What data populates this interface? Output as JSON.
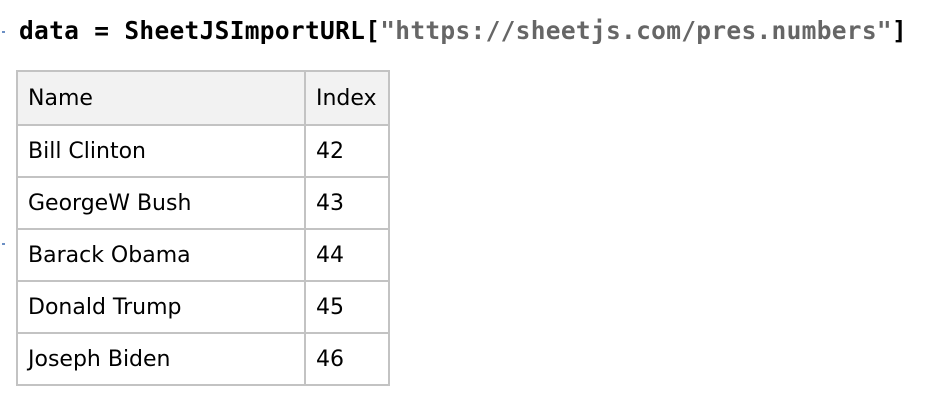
{
  "input": {
    "variable": "data",
    "operator": " = ",
    "function": "SheetJSImportURL",
    "open_bracket": "[",
    "argument": "\"https://sheetjs.com/pres.numbers\"",
    "close_bracket": "]"
  },
  "table": {
    "headers": [
      "Name",
      "Index"
    ],
    "rows": [
      [
        "Bill Clinton",
        "42"
      ],
      [
        "GeorgeW Bush",
        "43"
      ],
      [
        "Barack Obama",
        "44"
      ],
      [
        "Donald Trump",
        "45"
      ],
      [
        "Joseph Biden",
        "46"
      ]
    ]
  },
  "colors": {
    "header_bg": "#f2f2f2",
    "grid": "#c3c3c3",
    "string_literal": "#666666",
    "cell_bracket": "#6b8fc4"
  }
}
